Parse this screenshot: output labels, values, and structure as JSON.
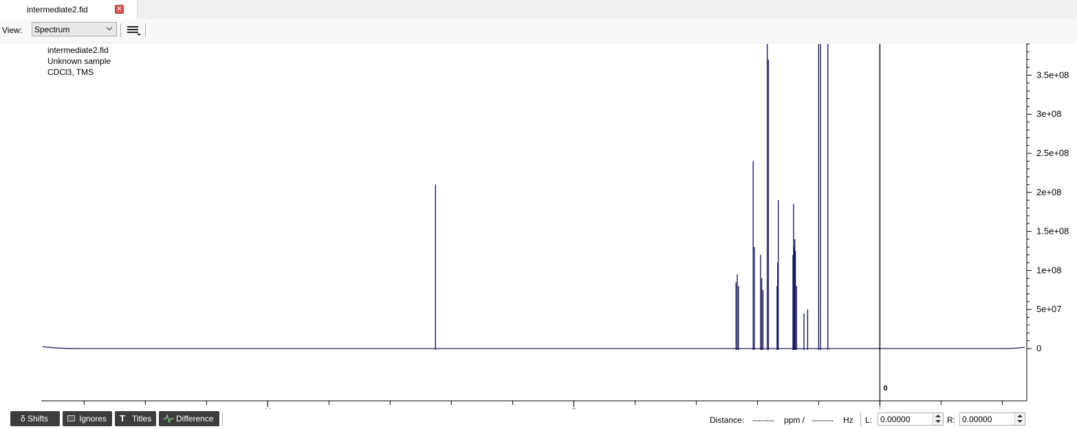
{
  "tab": {
    "title": "intermediate2.fid",
    "close_glyph": "✕"
  },
  "toolbar": {
    "view_label": "View:",
    "view_value": "Spectrum"
  },
  "sample": {
    "name": "intermediate2.fid",
    "description": "Unknown sample",
    "solvent": "CDCl3, TMS"
  },
  "bottom": {
    "shifts_label": "δ Shifts",
    "ignores_label": "Ignores",
    "titles_label": "Titles",
    "difference_label": "Difference",
    "distance_label": "Distance:",
    "distance_ppm_value": "--------",
    "ppm_unit": "ppm /",
    "distance_hz_value": "--------",
    "hz_unit": "Hz",
    "left_label": "L:",
    "left_value": "0.00000",
    "right_label": "R:",
    "right_value": "0.00000"
  },
  "colors": {
    "spectrum": "#1a1a5e",
    "button_bg": "#3d3d3d",
    "difference_icon": "#7cc47a",
    "close": "#d9534f"
  },
  "chart_data": {
    "type": "line",
    "xlabel": "",
    "ylabel": "",
    "xlim": [
      13.7,
      -2.4
    ],
    "ylim": [
      -37000000.0,
      390000000.0
    ],
    "x_ticks": [
      10,
      5,
      0
    ],
    "y_ticks": [
      0,
      50000000.0,
      100000000.0,
      150000000.0,
      200000000.0,
      250000000.0,
      300000000.0,
      350000000.0
    ],
    "y_tick_labels": [
      "0",
      "5e+07",
      "1e+08",
      "1.5e+08",
      "2e+08",
      "2.5e+08",
      "3e+08",
      "3.5e+08"
    ],
    "zero_label": "0",
    "peaks": [
      {
        "ppm": 7.26,
        "intensity": 210000000.0
      },
      {
        "ppm": 2.35,
        "intensity": 85000000.0
      },
      {
        "ppm": 2.33,
        "intensity": 95000000.0
      },
      {
        "ppm": 2.31,
        "intensity": 80000000.0
      },
      {
        "ppm": 2.07,
        "intensity": 240000000.0
      },
      {
        "ppm": 2.05,
        "intensity": 130000000.0
      },
      {
        "ppm": 1.95,
        "intensity": 120000000.0
      },
      {
        "ppm": 1.93,
        "intensity": 90000000.0
      },
      {
        "ppm": 1.91,
        "intensity": 75000000.0
      },
      {
        "ppm": 1.84,
        "intensity": 390000000.0
      },
      {
        "ppm": 1.82,
        "intensity": 370000000.0
      },
      {
        "ppm": 1.68,
        "intensity": 80000000.0
      },
      {
        "ppm": 1.67,
        "intensity": 110000000.0
      },
      {
        "ppm": 1.66,
        "intensity": 190000000.0
      },
      {
        "ppm": 1.42,
        "intensity": 120000000.0
      },
      {
        "ppm": 1.41,
        "intensity": 185000000.0
      },
      {
        "ppm": 1.4,
        "intensity": 130000000.0
      },
      {
        "ppm": 1.39,
        "intensity": 140000000.0
      },
      {
        "ppm": 1.38,
        "intensity": 125000000.0
      },
      {
        "ppm": 1.36,
        "intensity": 80000000.0
      },
      {
        "ppm": 1.24,
        "intensity": 45000000.0
      },
      {
        "ppm": 1.18,
        "intensity": 50000000.0
      },
      {
        "ppm": 1.0,
        "intensity": 390000000.0
      },
      {
        "ppm": 0.97,
        "intensity": 390000000.0
      },
      {
        "ppm": 0.85,
        "intensity": 390000000.0
      },
      {
        "ppm": 0.0,
        "intensity": 390000000.0
      }
    ]
  }
}
